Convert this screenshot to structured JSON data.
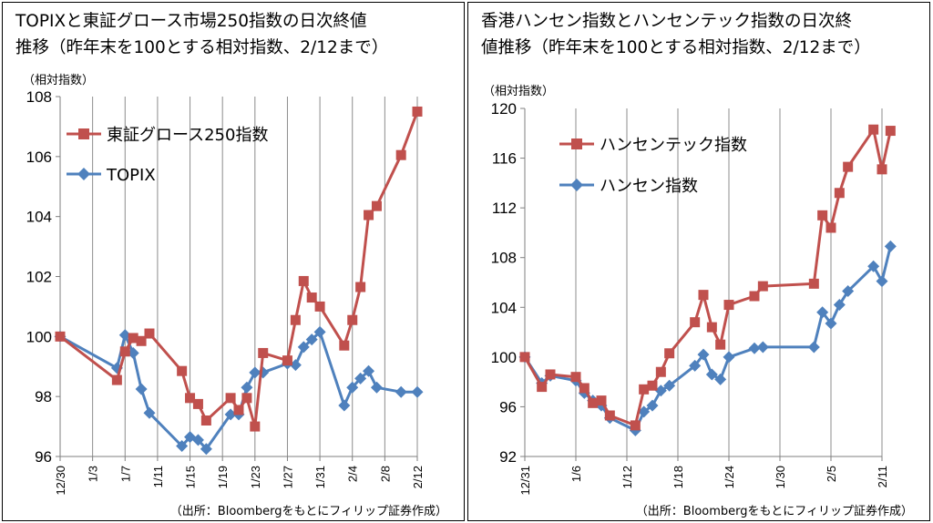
{
  "chart_data": [
    {
      "type": "line",
      "title": "TOPIXと東証グロース市場250指数の日次終値推移（昨年末を100とする相対指数、2/12まで）",
      "title_lines": [
        "TOPIXと東証グロース市場250指数の日次終値",
        "推移（昨年末を100とする相対指数、2/12まで）"
      ],
      "ylabel": "（相対指数）",
      "ylim": [
        96,
        108
      ],
      "yticks": [
        96,
        98,
        100,
        102,
        104,
        106,
        108
      ],
      "xlim": [
        0,
        44
      ],
      "xticks": [
        {
          "x": 0,
          "label": "12/30"
        },
        {
          "x": 4,
          "label": "1/3"
        },
        {
          "x": 8,
          "label": "1/7"
        },
        {
          "x": 12,
          "label": "1/11"
        },
        {
          "x": 16,
          "label": "1/15"
        },
        {
          "x": 20,
          "label": "1/19"
        },
        {
          "x": 24,
          "label": "1/23"
        },
        {
          "x": 28,
          "label": "1/27"
        },
        {
          "x": 32,
          "label": "1/31"
        },
        {
          "x": 36,
          "label": "2/4"
        },
        {
          "x": 40,
          "label": "2/8"
        },
        {
          "x": 44,
          "label": "2/12"
        }
      ],
      "grid": "vertical",
      "legend_position": "top-left",
      "source": "（出所：Bloombergをもとにフィリップ証券作成）",
      "series": [
        {
          "name": "東証グロース250指数",
          "color": "#c0504d",
          "marker": "square",
          "points": [
            [
              "12/30",
              100.0
            ],
            [
              "1/6",
              98.55
            ],
            [
              "1/7",
              99.5
            ],
            [
              "1/8",
              99.95
            ],
            [
              "1/9",
              99.85
            ],
            [
              "1/10",
              100.1
            ],
            [
              "1/14",
              98.85
            ],
            [
              "1/15",
              97.95
            ],
            [
              "1/16",
              97.75
            ],
            [
              "1/17",
              97.2
            ],
            [
              "1/20",
              97.95
            ],
            [
              "1/21",
              97.55
            ],
            [
              "1/22",
              97.95
            ],
            [
              "1/23",
              97.0
            ],
            [
              "1/24",
              99.45
            ],
            [
              "1/27",
              99.2
            ],
            [
              "1/28",
              100.55
            ],
            [
              "1/29",
              101.85
            ],
            [
              "1/30",
              101.3
            ],
            [
              "1/31",
              101.0
            ],
            [
              "2/3",
              99.7
            ],
            [
              "2/4",
              100.55
            ],
            [
              "2/5",
              101.65
            ],
            [
              "2/6",
              104.05
            ],
            [
              "2/7",
              104.35
            ],
            [
              "2/10",
              106.05
            ],
            [
              "2/12",
              107.5
            ]
          ]
        },
        {
          "name": "TOPIX",
          "color": "#4f81bd",
          "marker": "diamond",
          "points": [
            [
              "12/30",
              100.0
            ],
            [
              "1/6",
              98.95
            ],
            [
              "1/7",
              100.05
            ],
            [
              "1/8",
              99.45
            ],
            [
              "1/9",
              98.25
            ],
            [
              "1/10",
              97.45
            ],
            [
              "1/14",
              96.35
            ],
            [
              "1/15",
              96.65
            ],
            [
              "1/16",
              96.55
            ],
            [
              "1/17",
              96.25
            ],
            [
              "1/20",
              97.4
            ],
            [
              "1/21",
              97.4
            ],
            [
              "1/22",
              98.3
            ],
            [
              "1/23",
              98.8
            ],
            [
              "1/24",
              98.8
            ],
            [
              "1/27",
              99.1
            ],
            [
              "1/28",
              99.05
            ],
            [
              "1/29",
              99.65
            ],
            [
              "1/30",
              99.9
            ],
            [
              "1/31",
              100.15
            ],
            [
              "2/3",
              97.7
            ],
            [
              "2/4",
              98.3
            ],
            [
              "2/5",
              98.6
            ],
            [
              "2/6",
              98.85
            ],
            [
              "2/7",
              98.3
            ],
            [
              "2/10",
              98.15
            ],
            [
              "2/12",
              98.15
            ]
          ]
        }
      ]
    },
    {
      "type": "line",
      "title": "香港ハンセン指数とハンセンテック指数の日次終値推移（昨年末を100とする相対指数、2/12まで）",
      "title_lines": [
        "香港ハンセン指数とハンセンテック指数の日次終",
        "値推移（昨年末を100とする相対指数、2/12まで）"
      ],
      "ylabel": "（相対指数）",
      "ylim": [
        92,
        120
      ],
      "yticks": [
        92,
        96,
        100,
        104,
        108,
        112,
        116,
        120
      ],
      "xlim": [
        0,
        42
      ],
      "xticks": [
        {
          "x": 0,
          "label": "12/31"
        },
        {
          "x": 6,
          "label": "1/6"
        },
        {
          "x": 12,
          "label": "1/12"
        },
        {
          "x": 18,
          "label": "1/18"
        },
        {
          "x": 24,
          "label": "1/24"
        },
        {
          "x": 30,
          "label": "1/30"
        },
        {
          "x": 36,
          "label": "2/5"
        },
        {
          "x": 42,
          "label": "2/11"
        }
      ],
      "grid": "vertical",
      "legend_position": "top-left",
      "source": "（出所：Bloombergをもとにフィリップ証券作成）",
      "series": [
        {
          "name": "ハンセンテック指数",
          "color": "#c0504d",
          "marker": "square",
          "points": [
            [
              "12/31",
              100.0
            ],
            [
              "1/2",
              97.6
            ],
            [
              "1/3",
              98.6
            ],
            [
              "1/6",
              98.4
            ],
            [
              "1/7",
              97.5
            ],
            [
              "1/8",
              96.3
            ],
            [
              "1/9",
              96.5
            ],
            [
              "1/10",
              95.3
            ],
            [
              "1/13",
              94.5
            ],
            [
              "1/14",
              97.4
            ],
            [
              "1/15",
              97.7
            ],
            [
              "1/16",
              98.8
            ],
            [
              "1/17",
              100.3
            ],
            [
              "1/20",
              102.8
            ],
            [
              "1/21",
              105.0
            ],
            [
              "1/22",
              102.4
            ],
            [
              "1/23",
              101.0
            ],
            [
              "1/24",
              104.2
            ],
            [
              "1/27",
              104.9
            ],
            [
              "1/28",
              105.7
            ],
            [
              "2/3",
              105.9
            ],
            [
              "2/4",
              111.4
            ],
            [
              "2/5",
              110.4
            ],
            [
              "2/6",
              113.2
            ],
            [
              "2/7",
              115.3
            ],
            [
              "2/10",
              118.3
            ],
            [
              "2/11",
              115.1
            ],
            [
              "2/12",
              118.2
            ]
          ]
        },
        {
          "name": "ハンセン指数",
          "color": "#4f81bd",
          "marker": "diamond",
          "points": [
            [
              "12/31",
              100.0
            ],
            [
              "1/2",
              97.9
            ],
            [
              "1/3",
              98.5
            ],
            [
              "1/6",
              98.1
            ],
            [
              "1/7",
              97.1
            ],
            [
              "1/8",
              96.5
            ],
            [
              "1/9",
              96.1
            ],
            [
              "1/10",
              95.1
            ],
            [
              "1/13",
              94.1
            ],
            [
              "1/14",
              95.6
            ],
            [
              "1/15",
              96.1
            ],
            [
              "1/16",
              97.3
            ],
            [
              "1/17",
              97.7
            ],
            [
              "1/20",
              99.3
            ],
            [
              "1/21",
              100.2
            ],
            [
              "1/22",
              98.6
            ],
            [
              "1/23",
              98.2
            ],
            [
              "1/24",
              100.0
            ],
            [
              "1/27",
              100.7
            ],
            [
              "1/28",
              100.8
            ],
            [
              "2/3",
              100.8
            ],
            [
              "2/4",
              103.6
            ],
            [
              "2/5",
              102.7
            ],
            [
              "2/6",
              104.2
            ],
            [
              "2/7",
              105.3
            ],
            [
              "2/10",
              107.3
            ],
            [
              "2/11",
              106.1
            ],
            [
              "2/12",
              108.9
            ]
          ]
        }
      ]
    }
  ]
}
